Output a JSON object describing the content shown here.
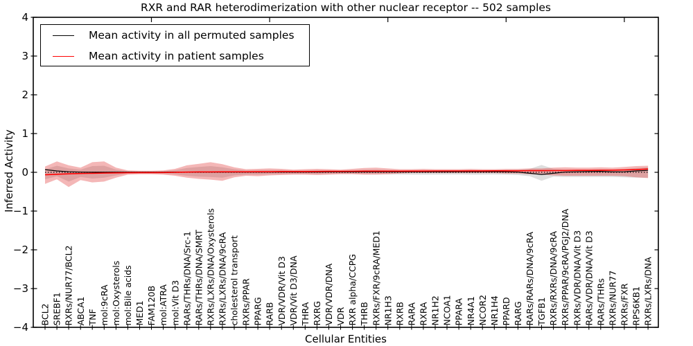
{
  "figure": {
    "title": "RXR and RAR heterodimerization with other nuclear receptor -- 502 samples",
    "xlabel": "Cellular Entities",
    "ylabel": "Inferred Activity",
    "background_color": "#ffffff",
    "frame_color": "#000000"
  },
  "legend": {
    "items": [
      {
        "label": "Mean activity in all permuted samples",
        "color": "#000000"
      },
      {
        "label": "Mean activity in patient samples",
        "color": "#ff0000"
      }
    ]
  },
  "axes": {
    "y_tick_labels": [
      "4",
      "3",
      "2",
      "1",
      "0",
      "−1",
      "−2",
      "−3",
      "−4"
    ],
    "y_tick_values": [
      4,
      3,
      2,
      1,
      0,
      -1,
      -2,
      -3,
      -4
    ],
    "top_tick_indices": [
      9,
      19,
      29,
      39,
      49
    ]
  },
  "chart_data": {
    "type": "line",
    "title": "RXR and RAR heterodimerization with other nuclear receptor -- 502 samples",
    "xlabel": "Cellular Entities",
    "ylabel": "Inferred Activity",
    "ylim": [
      -4,
      4
    ],
    "grid": false,
    "legend_position": "upper left",
    "categories": [
      "BCL2",
      "SREBF1",
      "RXRs/NUR77/BCL2",
      "ABCA1",
      "TNF",
      "mol:9cRA",
      "mol:Oxysterols",
      "mol:Bile acids",
      "MED1",
      "FAM120B",
      "mol:ATRA",
      "mol:Vit D3",
      "RARs/THRs/DNA/Src-1",
      "RARs/THRs/DNA/SMRT",
      "RXRs/LXRs/DNA/Oxysterols",
      "RXRs/LXRs/DNA/9cRA",
      "cholesterol transport",
      "RXRs/PPAR",
      "PPARG",
      "RARB",
      "VDR/VDR/Vit D3",
      "VDR/Vit D3/DNA",
      "THRA",
      "RXRG",
      "VDR/VDR/DNA",
      "VDR",
      "RXR alpha/CCPG",
      "THRB",
      "RXRs/FXR/9cRA/MED1",
      "NR1H3",
      "RXRB",
      "RARA",
      "RXRA",
      "NR1H2",
      "NCOA1",
      "PPARA",
      "NR4A1",
      "NCOR2",
      "NR1H4",
      "PPARD",
      "RARG",
      "RARs/RARs/DNA/9cRA",
      "TGFB1",
      "RXRs/RXRs/DNA/9cRA",
      "RXRs/PPAR/9cRA/PGJ2/DNA",
      "RXRs/VDR/DNA/Vit D3",
      "RARs/VDR/DNA/Vit D3",
      "RARs/THRs",
      "RXRs/NUR77",
      "RXRs/FXR",
      "RPS6KB1",
      "RXRs/LXRs/DNA"
    ],
    "series": [
      {
        "name": "Mean activity in all permuted samples",
        "color": "#000000",
        "width": 1.2,
        "values": [
          0.07,
          0.035,
          0.015,
          0.005,
          0.002,
          0.002,
          0.002,
          0.002,
          0.002,
          0.002,
          0.002,
          0.005,
          0.008,
          0.008,
          0.005,
          0.005,
          0.005,
          0.005,
          0.005,
          0.005,
          0.008,
          0.008,
          0.008,
          0.008,
          0.01,
          0.01,
          0.01,
          0.012,
          0.012,
          0.012,
          0.012,
          0.015,
          0.015,
          0.015,
          0.015,
          0.018,
          0.018,
          0.018,
          0.02,
          0.015,
          0.005,
          -0.025,
          -0.055,
          -0.025,
          0.005,
          0.015,
          0.02,
          0.025,
          0.01,
          0.015,
          0.035,
          0.05
        ]
      },
      {
        "name": "Mean activity in patient samples",
        "color": "#ff0000",
        "width": 1.6,
        "values": [
          -0.065,
          -0.05,
          -0.04,
          -0.03,
          -0.025,
          -0.02,
          -0.015,
          -0.01,
          -0.008,
          -0.008,
          -0.005,
          0.0,
          0.005,
          0.01,
          0.01,
          0.012,
          0.012,
          0.012,
          0.015,
          0.015,
          0.02,
          0.02,
          0.02,
          0.022,
          0.025,
          0.025,
          0.027,
          0.03,
          0.03,
          0.03,
          0.03,
          0.032,
          0.032,
          0.035,
          0.035,
          0.035,
          0.037,
          0.037,
          0.04,
          0.04,
          0.04,
          0.042,
          0.042,
          0.045,
          0.047,
          0.05,
          0.05,
          0.052,
          0.055,
          0.06,
          0.07,
          0.085
        ]
      }
    ],
    "bands": [
      {
        "name": "permuted-std-band",
        "color": "#8a8a8a",
        "opacity": 0.28,
        "upper": [
          0.08,
          0.17,
          0.1,
          0.07,
          0.16,
          0.17,
          0.07,
          0.03,
          0.025,
          0.025,
          0.03,
          0.055,
          0.11,
          0.14,
          0.16,
          0.13,
          0.08,
          0.05,
          0.055,
          0.06,
          0.055,
          0.045,
          0.05,
          0.055,
          0.05,
          0.045,
          0.055,
          0.065,
          0.07,
          0.06,
          0.05,
          0.05,
          0.05,
          0.05,
          0.05,
          0.05,
          0.05,
          0.05,
          0.05,
          0.055,
          0.06,
          0.09,
          0.19,
          0.09,
          0.07,
          0.07,
          0.07,
          0.08,
          0.07,
          0.08,
          0.11,
          0.13
        ],
        "lower": [
          -0.18,
          -0.1,
          -0.24,
          -0.12,
          -0.16,
          -0.14,
          -0.08,
          -0.03,
          -0.03,
          -0.03,
          -0.035,
          -0.055,
          -0.09,
          -0.11,
          -0.12,
          -0.14,
          -0.08,
          -0.06,
          -0.06,
          -0.05,
          -0.045,
          -0.04,
          -0.04,
          -0.045,
          -0.04,
          -0.035,
          -0.035,
          -0.04,
          -0.04,
          -0.05,
          -0.055,
          -0.06,
          -0.06,
          -0.06,
          -0.055,
          -0.055,
          -0.06,
          -0.06,
          -0.055,
          -0.06,
          -0.07,
          -0.1,
          -0.22,
          -0.11,
          -0.12,
          -0.12,
          -0.12,
          -0.12,
          -0.12,
          -0.13,
          -0.14,
          -0.14
        ]
      },
      {
        "name": "patient-std-band",
        "color": "#e03030",
        "opacity": 0.35,
        "upper": [
          0.15,
          0.28,
          0.18,
          0.12,
          0.26,
          0.28,
          0.12,
          0.05,
          0.04,
          0.04,
          0.05,
          0.09,
          0.18,
          0.22,
          0.26,
          0.21,
          0.13,
          0.08,
          0.09,
          0.1,
          0.09,
          0.07,
          0.08,
          0.09,
          0.08,
          0.07,
          0.09,
          0.11,
          0.12,
          0.1,
          0.08,
          0.08,
          0.09,
          0.08,
          0.08,
          0.08,
          0.09,
          0.08,
          0.08,
          0.09,
          0.09,
          0.1,
          0.1,
          0.12,
          0.13,
          0.12,
          0.12,
          0.13,
          0.12,
          0.14,
          0.16,
          0.17
        ],
        "lower": [
          -0.3,
          -0.18,
          -0.38,
          -0.2,
          -0.26,
          -0.24,
          -0.14,
          -0.06,
          -0.05,
          -0.05,
          -0.06,
          -0.09,
          -0.14,
          -0.17,
          -0.19,
          -0.22,
          -0.13,
          -0.09,
          -0.1,
          -0.08,
          -0.07,
          -0.06,
          -0.06,
          -0.07,
          -0.06,
          -0.05,
          -0.05,
          -0.06,
          -0.06,
          -0.05,
          -0.03,
          -0.02,
          -0.02,
          -0.02,
          -0.02,
          -0.02,
          -0.02,
          -0.02,
          -0.02,
          -0.03,
          -0.03,
          -0.05,
          -0.06,
          -0.08,
          -0.09,
          -0.09,
          -0.09,
          -0.09,
          -0.09,
          -0.1,
          -0.13,
          -0.15
        ]
      }
    ],
    "zero_line": {
      "y": 0,
      "style": "dotted",
      "color": "#000000"
    }
  }
}
